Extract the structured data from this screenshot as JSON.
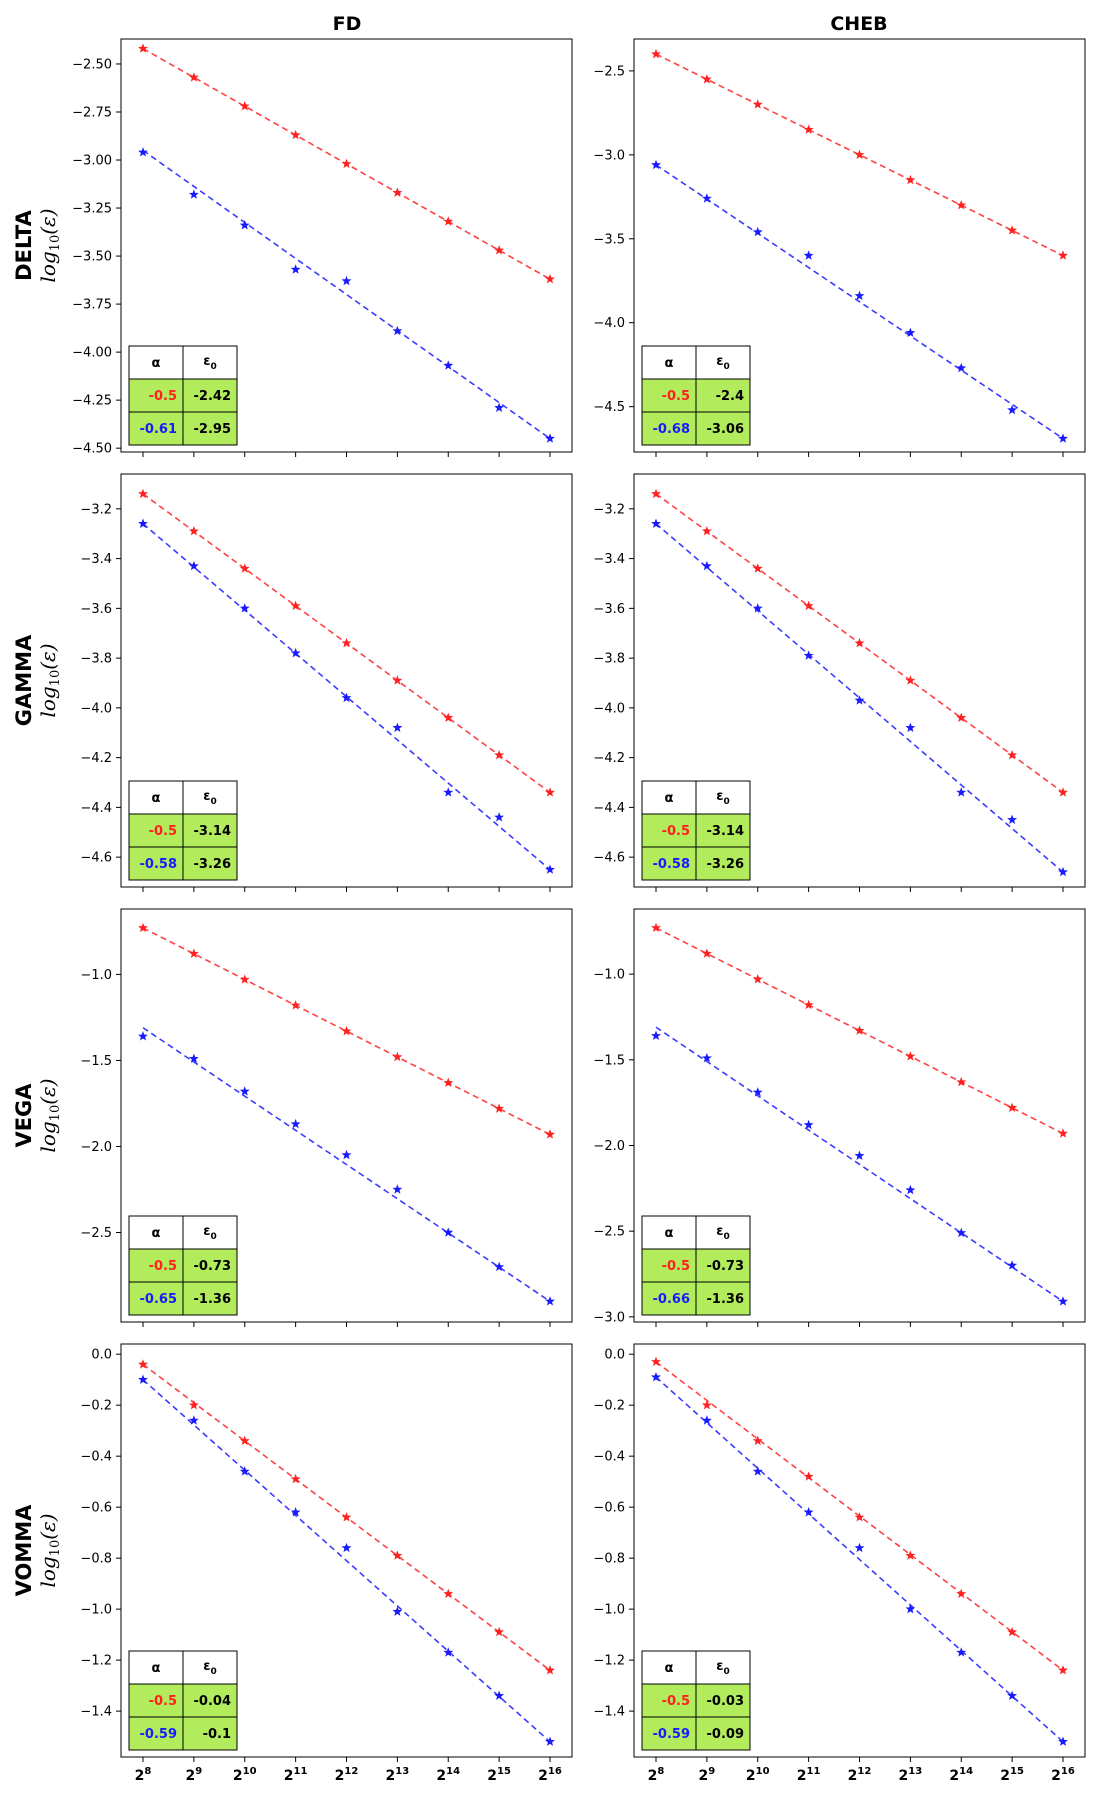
{
  "figure": {
    "columns": [
      "FD",
      "CHEB"
    ],
    "rows": [
      "DELTA",
      "GAMMA",
      "VEGA",
      "VOMMA"
    ],
    "ylabel_main": "log",
    "ylabel_sub": "10",
    "ylabel_arg": "(ε)",
    "x_base": "2",
    "x_exponents": [
      "8",
      "9",
      "10",
      "11",
      "12",
      "13",
      "14",
      "15",
      "16"
    ],
    "table_header_alpha": "α",
    "table_header_eps": "ε",
    "table_header_eps_sub": "0"
  },
  "colors": {
    "red": "#ff2020",
    "blue": "#1a1aff",
    "table_fill": "#b2ec5d",
    "table_header_fill": "#ffffff"
  },
  "chart_data": [
    {
      "type": "line",
      "row": "DELTA",
      "column": "FD",
      "yticks": [
        "-2.50",
        "-2.75",
        "-3.00",
        "-3.25",
        "-3.50",
        "-3.75",
        "-4.00",
        "-4.25",
        "-4.50"
      ],
      "ytick_values": [
        -2.5,
        -2.75,
        -3.0,
        -3.25,
        -3.5,
        -3.75,
        -4.0,
        -4.25,
        -4.5
      ],
      "ylim": [
        -4.52,
        -2.37
      ],
      "series": [
        {
          "name": "red",
          "color": "red",
          "points": [
            -2.42,
            -2.57,
            -2.72,
            -2.87,
            -3.02,
            -3.17,
            -3.32,
            -3.47,
            -3.62
          ],
          "fit": [
            -2.42,
            -3.62
          ]
        },
        {
          "name": "blue",
          "color": "blue",
          "points": [
            -2.96,
            -3.18,
            -3.34,
            -3.57,
            -3.63,
            -3.89,
            -4.07,
            -4.29,
            -4.45
          ],
          "fit": [
            -2.95,
            -4.45
          ]
        }
      ],
      "table": [
        {
          "alpha": "-0.5",
          "eps0": "-2.42",
          "color": "red"
        },
        {
          "alpha": "-0.61",
          "eps0": "-2.95",
          "color": "blue"
        }
      ]
    },
    {
      "type": "line",
      "row": "DELTA",
      "column": "CHEB",
      "yticks": [
        "-2.5",
        "-3.0",
        "-3.5",
        "-4.0",
        "-4.5"
      ],
      "ytick_values": [
        -2.5,
        -3.0,
        -3.5,
        -4.0,
        -4.5
      ],
      "ylim": [
        -4.77,
        -2.31
      ],
      "series": [
        {
          "name": "red",
          "color": "red",
          "points": [
            -2.4,
            -2.55,
            -2.7,
            -2.85,
            -3.0,
            -3.15,
            -3.3,
            -3.45,
            -3.6
          ],
          "fit": [
            -2.4,
            -3.6
          ]
        },
        {
          "name": "blue",
          "color": "blue",
          "points": [
            -3.06,
            -3.26,
            -3.46,
            -3.6,
            -3.84,
            -4.06,
            -4.27,
            -4.52,
            -4.69
          ],
          "fit": [
            -3.06,
            -4.69
          ]
        }
      ],
      "table": [
        {
          "alpha": "-0.5",
          "eps0": "-2.4",
          "color": "red"
        },
        {
          "alpha": "-0.68",
          "eps0": "-3.06",
          "color": "blue"
        }
      ]
    },
    {
      "type": "line",
      "row": "GAMMA",
      "column": "FD",
      "yticks": [
        "-3.2",
        "-3.4",
        "-3.6",
        "-3.8",
        "-4.0",
        "-4.2",
        "-4.4",
        "-4.6"
      ],
      "ytick_values": [
        -3.2,
        -3.4,
        -3.6,
        -3.8,
        -4.0,
        -4.2,
        -4.4,
        -4.6
      ],
      "ylim": [
        -4.72,
        -3.06
      ],
      "series": [
        {
          "name": "red",
          "color": "red",
          "points": [
            -3.14,
            -3.29,
            -3.44,
            -3.59,
            -3.74,
            -3.89,
            -4.04,
            -4.19,
            -4.34
          ],
          "fit": [
            -3.14,
            -4.34
          ]
        },
        {
          "name": "blue",
          "color": "blue",
          "points": [
            -3.26,
            -3.43,
            -3.6,
            -3.78,
            -3.96,
            -4.08,
            -4.34,
            -4.44,
            -4.65
          ],
          "fit": [
            -3.26,
            -4.65
          ]
        }
      ],
      "table": [
        {
          "alpha": "-0.5",
          "eps0": "-3.14",
          "color": "red"
        },
        {
          "alpha": "-0.58",
          "eps0": "-3.26",
          "color": "blue"
        }
      ]
    },
    {
      "type": "line",
      "row": "GAMMA",
      "column": "CHEB",
      "yticks": [
        "-3.2",
        "-3.4",
        "-3.6",
        "-3.8",
        "-4.0",
        "-4.2",
        "-4.4",
        "-4.6"
      ],
      "ytick_values": [
        -3.2,
        -3.4,
        -3.6,
        -3.8,
        -4.0,
        -4.2,
        -4.4,
        -4.6
      ],
      "ylim": [
        -4.72,
        -3.06
      ],
      "series": [
        {
          "name": "red",
          "color": "red",
          "points": [
            -3.14,
            -3.29,
            -3.44,
            -3.59,
            -3.74,
            -3.89,
            -4.04,
            -4.19,
            -4.34
          ],
          "fit": [
            -3.14,
            -4.34
          ]
        },
        {
          "name": "blue",
          "color": "blue",
          "points": [
            -3.26,
            -3.43,
            -3.6,
            -3.79,
            -3.97,
            -4.08,
            -4.34,
            -4.45,
            -4.66
          ],
          "fit": [
            -3.26,
            -4.66
          ]
        }
      ],
      "table": [
        {
          "alpha": "-0.5",
          "eps0": "-3.14",
          "color": "red"
        },
        {
          "alpha": "-0.58",
          "eps0": "-3.26",
          "color": "blue"
        }
      ]
    },
    {
      "type": "line",
      "row": "VEGA",
      "column": "FD",
      "yticks": [
        "-1.0",
        "-1.5",
        "-2.0",
        "-2.5"
      ],
      "ytick_values": [
        -1.0,
        -1.5,
        -2.0,
        -2.5
      ],
      "ylim": [
        -3.02,
        -0.62
      ],
      "series": [
        {
          "name": "red",
          "color": "red",
          "points": [
            -0.73,
            -0.88,
            -1.03,
            -1.18,
            -1.33,
            -1.48,
            -1.63,
            -1.78,
            -1.93
          ],
          "fit": [
            -0.73,
            -1.93
          ]
        },
        {
          "name": "blue",
          "color": "blue",
          "points": [
            -1.36,
            -1.49,
            -1.68,
            -1.87,
            -2.05,
            -2.25,
            -2.5,
            -2.7,
            -2.9
          ],
          "fit": [
            -1.31,
            -2.9
          ]
        }
      ],
      "table": [
        {
          "alpha": "-0.5",
          "eps0": "-0.73",
          "color": "red"
        },
        {
          "alpha": "-0.65",
          "eps0": "-1.36",
          "color": "blue"
        }
      ]
    },
    {
      "type": "line",
      "row": "VEGA",
      "column": "CHEB",
      "yticks": [
        "-1.0",
        "-1.5",
        "-2.0",
        "-2.5",
        "-3.0"
      ],
      "ytick_values": [
        -1.0,
        -1.5,
        -2.0,
        -2.5,
        -3.0
      ],
      "ylim": [
        -3.03,
        -0.62
      ],
      "series": [
        {
          "name": "red",
          "color": "red",
          "points": [
            -0.73,
            -0.88,
            -1.03,
            -1.18,
            -1.33,
            -1.48,
            -1.63,
            -1.78,
            -1.93
          ],
          "fit": [
            -0.73,
            -1.93
          ]
        },
        {
          "name": "blue",
          "color": "blue",
          "points": [
            -1.36,
            -1.49,
            -1.69,
            -1.88,
            -2.06,
            -2.26,
            -2.51,
            -2.7,
            -2.91
          ],
          "fit": [
            -1.31,
            -2.91
          ]
        }
      ],
      "table": [
        {
          "alpha": "-0.5",
          "eps0": "-0.73",
          "color": "red"
        },
        {
          "alpha": "-0.66",
          "eps0": "-1.36",
          "color": "blue"
        }
      ]
    },
    {
      "type": "line",
      "row": "VOMMA",
      "column": "FD",
      "yticks": [
        "0.0",
        "-0.2",
        "-0.4",
        "-0.6",
        "-0.8",
        "-1.0",
        "-1.2",
        "-1.4"
      ],
      "ytick_values": [
        0.0,
        -0.2,
        -0.4,
        -0.6,
        -0.8,
        -1.0,
        -1.2,
        -1.4
      ],
      "ylim": [
        -1.58,
        0.04
      ],
      "series": [
        {
          "name": "red",
          "color": "red",
          "points": [
            -0.04,
            -0.2,
            -0.34,
            -0.49,
            -0.64,
            -0.79,
            -0.94,
            -1.09,
            -1.24
          ],
          "fit": [
            -0.04,
            -1.24
          ]
        },
        {
          "name": "blue",
          "color": "blue",
          "points": [
            -0.1,
            -0.26,
            -0.46,
            -0.62,
            -0.76,
            -1.01,
            -1.17,
            -1.34,
            -1.52
          ],
          "fit": [
            -0.1,
            -1.52
          ]
        }
      ],
      "table": [
        {
          "alpha": "-0.5",
          "eps0": "-0.04",
          "color": "red"
        },
        {
          "alpha": "-0.59",
          "eps0": "-0.1",
          "color": "blue"
        }
      ]
    },
    {
      "type": "line",
      "row": "VOMMA",
      "column": "CHEB",
      "yticks": [
        "0.0",
        "-0.2",
        "-0.4",
        "-0.6",
        "-0.8",
        "-1.0",
        "-1.2",
        "-1.4"
      ],
      "ytick_values": [
        0.0,
        -0.2,
        -0.4,
        -0.6,
        -0.8,
        -1.0,
        -1.2,
        -1.4
      ],
      "ylim": [
        -1.58,
        0.04
      ],
      "series": [
        {
          "name": "red",
          "color": "red",
          "points": [
            -0.03,
            -0.2,
            -0.34,
            -0.48,
            -0.64,
            -0.79,
            -0.94,
            -1.09,
            -1.24
          ],
          "fit": [
            -0.03,
            -1.24
          ]
        },
        {
          "name": "blue",
          "color": "blue",
          "points": [
            -0.09,
            -0.26,
            -0.46,
            -0.62,
            -0.76,
            -1.0,
            -1.17,
            -1.34,
            -1.52
          ],
          "fit": [
            -0.09,
            -1.52
          ]
        }
      ],
      "table": [
        {
          "alpha": "-0.5",
          "eps0": "-0.03",
          "color": "red"
        },
        {
          "alpha": "-0.59",
          "eps0": "-0.09",
          "color": "blue"
        }
      ]
    }
  ]
}
